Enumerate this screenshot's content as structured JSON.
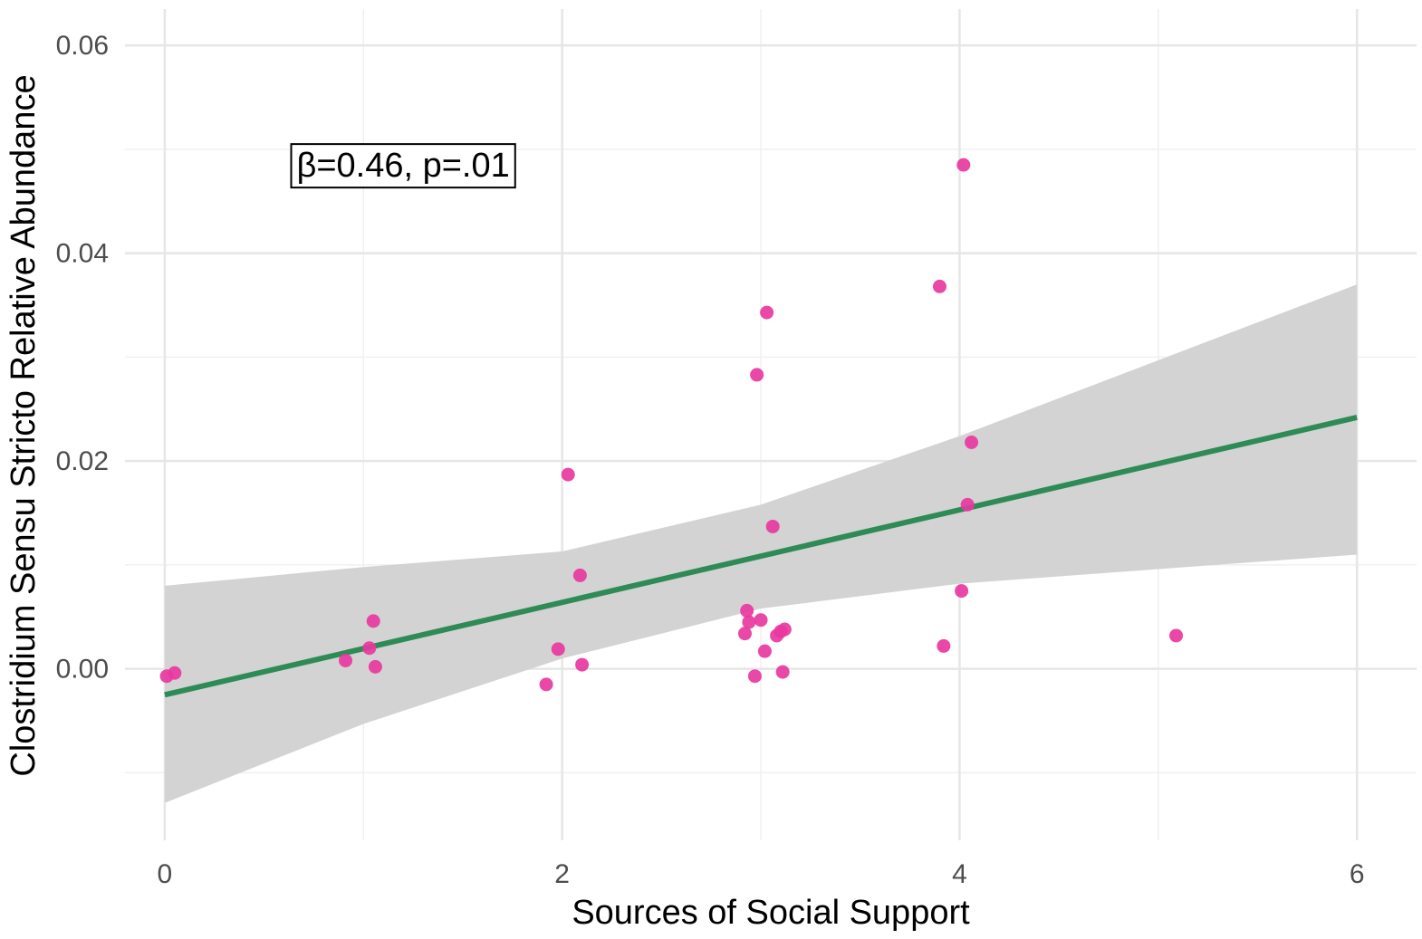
{
  "chart_data": {
    "type": "scatter",
    "title": "",
    "xlabel": "Sources of Social Support",
    "ylabel": "Clostridium Sensu Stricto Relative Abundance",
    "xlim": [
      -0.2,
      6.3
    ],
    "ylim": [
      -0.0165,
      0.0635
    ],
    "x_ticks": [
      0,
      2,
      4,
      6
    ],
    "x_tick_labels": [
      "0",
      "2",
      "4",
      "6"
    ],
    "y_ticks": [
      0.0,
      0.02,
      0.04,
      0.06
    ],
    "y_tick_labels": [
      "0.00",
      "0.02",
      "0.04",
      "0.06"
    ],
    "x_minor_gridlines": [
      1,
      3,
      5
    ],
    "y_minor_gridlines": [
      -0.01,
      0.01,
      0.03,
      0.05
    ],
    "grid": true,
    "annotation": {
      "text": "β=0.46, p=.01",
      "x": 1.2,
      "y": 0.0485
    },
    "points": {
      "color": "#e8389f",
      "x": [
        0.01,
        0.05,
        0.91,
        1.03,
        1.05,
        1.06,
        1.92,
        1.98,
        2.03,
        2.09,
        2.1,
        2.92,
        2.93,
        2.94,
        2.97,
        2.98,
        3.0,
        3.02,
        3.03,
        3.06,
        3.08,
        3.1,
        3.11,
        3.12,
        3.9,
        3.92,
        4.01,
        4.02,
        4.04,
        4.06,
        5.09
      ],
      "y": [
        -0.0007,
        -0.0004,
        0.0008,
        0.002,
        0.0046,
        0.0002,
        -0.0015,
        0.0019,
        0.0187,
        0.009,
        0.0004,
        0.0034,
        0.0056,
        0.0045,
        -0.0007,
        0.0283,
        0.0047,
        0.0017,
        0.0343,
        0.0137,
        0.0032,
        0.0036,
        -0.0003,
        0.0038,
        0.0368,
        0.0022,
        0.0075,
        0.0485,
        0.0158,
        0.0218,
        0.0032
      ]
    },
    "fit_line": {
      "color": "#2e8b57",
      "x": [
        0,
        6
      ],
      "y": [
        -0.0025,
        0.0242
      ]
    },
    "confidence_band": {
      "color": "#d3d3d3",
      "x": [
        0,
        1,
        2,
        3,
        4,
        6
      ],
      "lower": [
        -0.0129,
        -0.0053,
        0.001,
        0.0058,
        0.0082,
        0.011
      ],
      "upper": [
        0.008,
        0.0098,
        0.0113,
        0.0158,
        0.0224,
        0.037
      ]
    }
  }
}
